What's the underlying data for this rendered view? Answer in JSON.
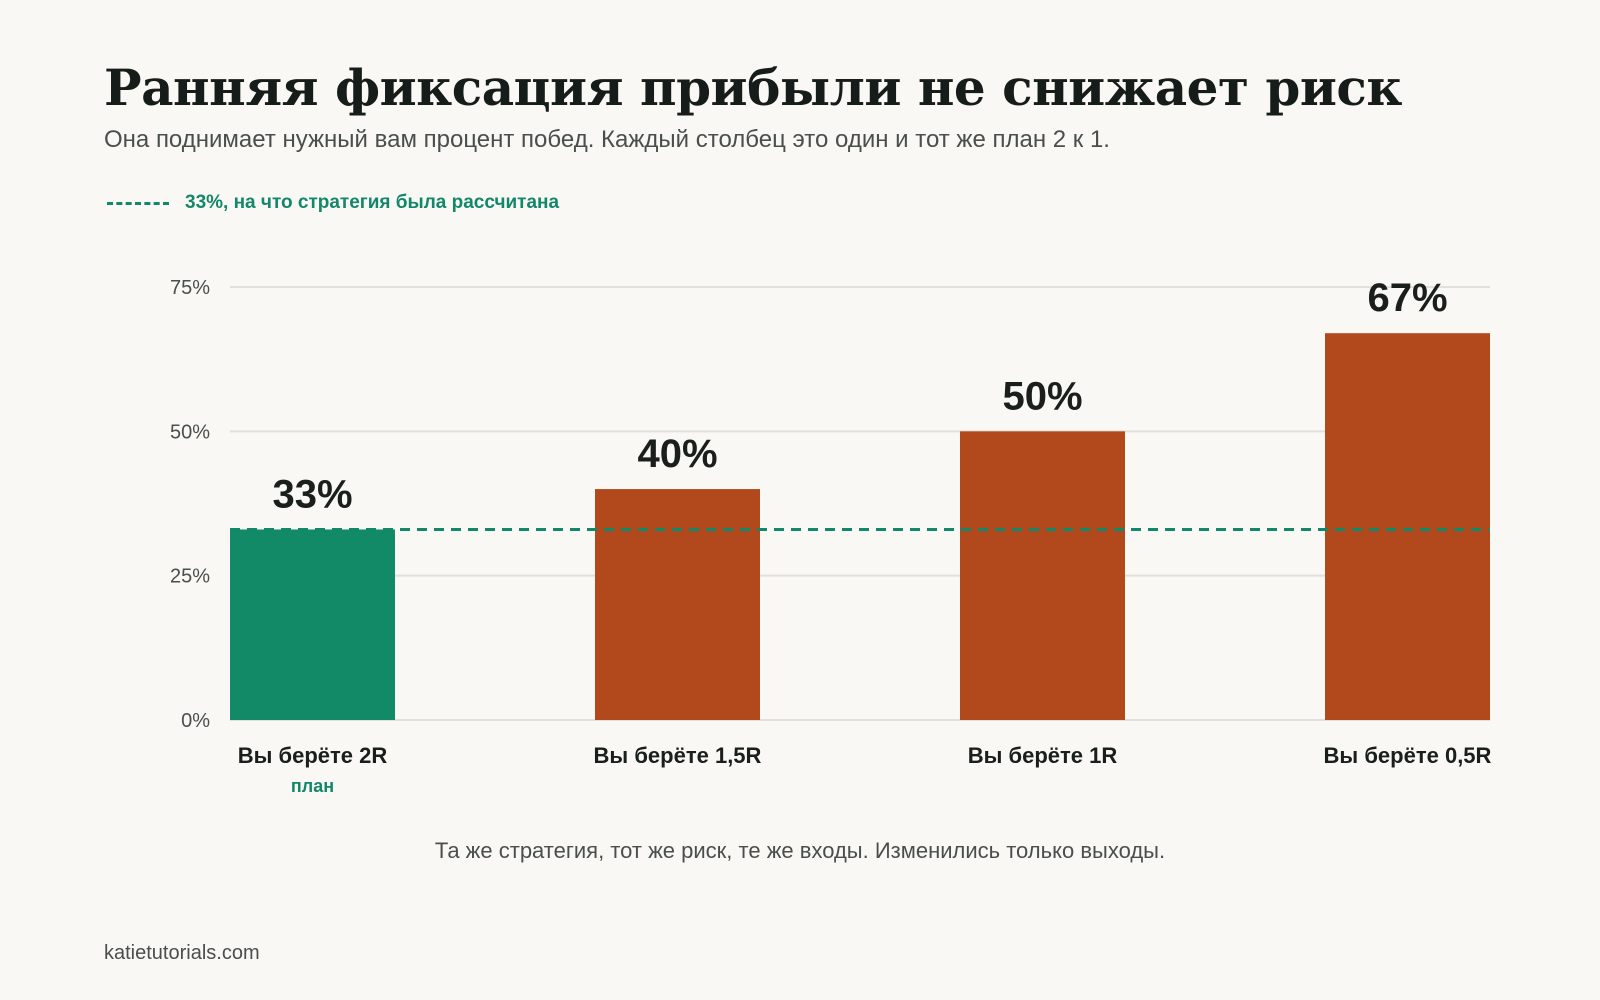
{
  "title": "Ранняя фиксация прибыли не снижает риск",
  "subtitle": "Она поднимает нужный вам процент побед. Каждый столбец это один и тот же план 2 к 1.",
  "legend": {
    "label": "33%, на что стратегия была рассчитана"
  },
  "chart_data": {
    "type": "bar",
    "categories": [
      "Вы берёте 2R",
      "Вы берёте 1,5R",
      "Вы берёте 1R",
      "Вы берёте 0,5R"
    ],
    "sublabels": [
      "план",
      "",
      "",
      ""
    ],
    "values": [
      33,
      40,
      50,
      67
    ],
    "value_labels": [
      "33%",
      "40%",
      "50%",
      "67%"
    ],
    "ylim": [
      0,
      75
    ],
    "yticks": [
      0,
      25,
      50,
      75
    ],
    "ytick_labels": [
      "0%",
      "25%",
      "50%",
      "75%"
    ],
    "grid": true,
    "reference_line": {
      "value": 33,
      "style": "dashed"
    },
    "colors": {
      "plan": "#128a67",
      "other": "#b1491d",
      "reference": "#13876a",
      "grid": "#e2e0da",
      "tick_text": "#4a4f4c",
      "value_text": "#1a1f1c"
    }
  },
  "caption": "Та же стратегия, тот же риск, те же входы. Изменились только выходы.",
  "footer": "katietutorials.com"
}
